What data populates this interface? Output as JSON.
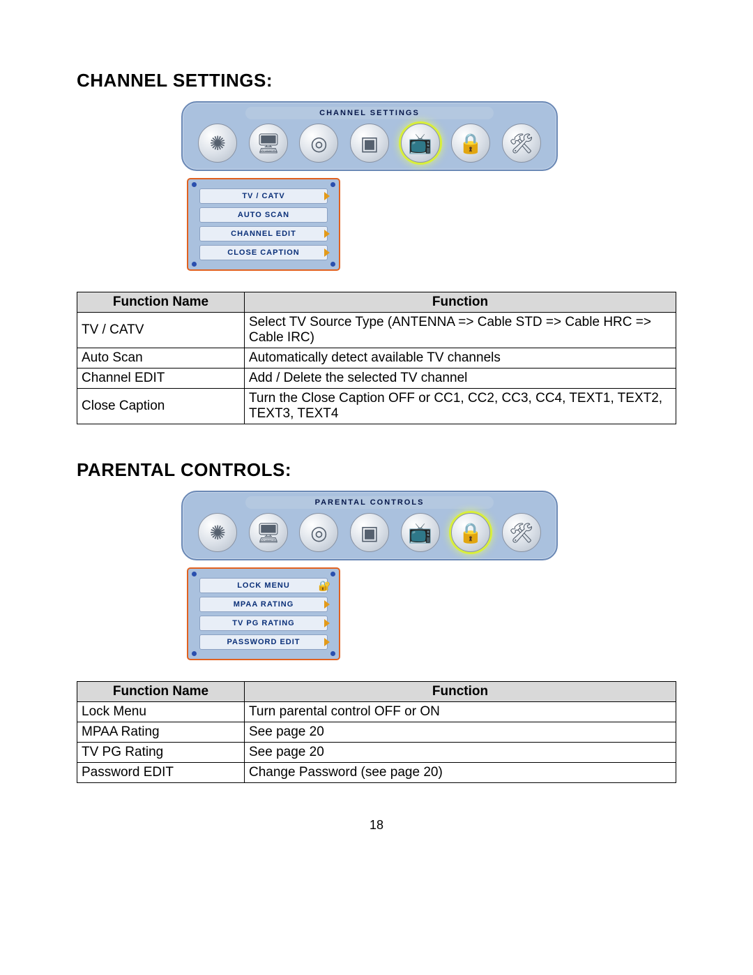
{
  "page_number": "18",
  "colors": {
    "panel_bg": "#aac1de",
    "panel_border": "#6a88b5",
    "submenu_border": "#e1611f",
    "subitem_bg": "#e8eef7",
    "subitem_text": "#0a2f78",
    "arrow": "#e39a1a",
    "corner_dot": "#2a4fae",
    "table_header_bg": "#d9d9d9",
    "highlight_glow": "#d9ef3a"
  },
  "section1": {
    "heading": "CHANNEL SETTINGS:",
    "osd_title": "CHANNEL SETTINGS",
    "icons": [
      {
        "name": "general-icon",
        "glyph": "✺",
        "selected": false
      },
      {
        "name": "pc-icon",
        "glyph": "🖥",
        "selected": false
      },
      {
        "name": "audio-icon",
        "glyph": "◎",
        "selected": false
      },
      {
        "name": "video-icon",
        "glyph": "▣",
        "selected": false
      },
      {
        "name": "channel-icon",
        "glyph": "📺",
        "selected": true
      },
      {
        "name": "lock-icon",
        "glyph": "🔒",
        "selected": false
      },
      {
        "name": "tools-icon",
        "glyph": "🛠",
        "selected": false
      }
    ],
    "submenu": [
      {
        "label": "TV / CATV",
        "arrow": true,
        "lock": false
      },
      {
        "label": "AUTO SCAN",
        "arrow": false,
        "lock": false
      },
      {
        "label": "CHANNEL EDIT",
        "arrow": true,
        "lock": false
      },
      {
        "label": "CLOSE CAPTION",
        "arrow": true,
        "lock": false
      }
    ],
    "table": {
      "headers": [
        "Function Name",
        "Function"
      ],
      "rows": [
        {
          "name": "TV / CATV",
          "desc": "Select TV Source Type (ANTENNA => Cable STD => Cable HRC => Cable IRC)",
          "justify": true
        },
        {
          "name": "Auto Scan",
          "desc": "Automatically detect available TV channels",
          "justify": false
        },
        {
          "name": "Channel EDIT",
          "desc": "Add / Delete the selected TV channel",
          "justify": false
        },
        {
          "name": "Close Caption",
          "desc": "Turn the Close Caption OFF or CC1, CC2, CC3, CC4, TEXT1, TEXT2, TEXT3, TEXT4",
          "justify": true
        }
      ]
    }
  },
  "section2": {
    "heading": "PARENTAL CONTROLS:",
    "osd_title": "PARENTAL CONTROLS",
    "icons": [
      {
        "name": "general-icon",
        "glyph": "✺",
        "selected": false
      },
      {
        "name": "pc-icon",
        "glyph": "🖥",
        "selected": false
      },
      {
        "name": "audio-icon",
        "glyph": "◎",
        "selected": false
      },
      {
        "name": "video-icon",
        "glyph": "▣",
        "selected": false
      },
      {
        "name": "channel-icon",
        "glyph": "📺",
        "selected": false
      },
      {
        "name": "lock-icon",
        "glyph": "🔒",
        "selected": true
      },
      {
        "name": "tools-icon",
        "glyph": "🛠",
        "selected": false
      }
    ],
    "submenu": [
      {
        "label": "LOCK MENU",
        "arrow": false,
        "lock": true
      },
      {
        "label": "MPAA RATING",
        "arrow": true,
        "lock": false
      },
      {
        "label": "TV PG RATING",
        "arrow": true,
        "lock": false
      },
      {
        "label": "PASSWORD EDIT",
        "arrow": true,
        "lock": false
      }
    ],
    "table": {
      "headers": [
        "Function Name",
        "Function"
      ],
      "rows": [
        {
          "name": "Lock Menu",
          "desc": "Turn parental control OFF or ON",
          "justify": false
        },
        {
          "name": "MPAA Rating",
          "desc": "See page 20",
          "justify": false
        },
        {
          "name": "TV PG Rating",
          "desc": "See page 20",
          "justify": false
        },
        {
          "name": "Password EDIT",
          "desc": "Change Password (see page 20)",
          "justify": false
        }
      ]
    }
  }
}
